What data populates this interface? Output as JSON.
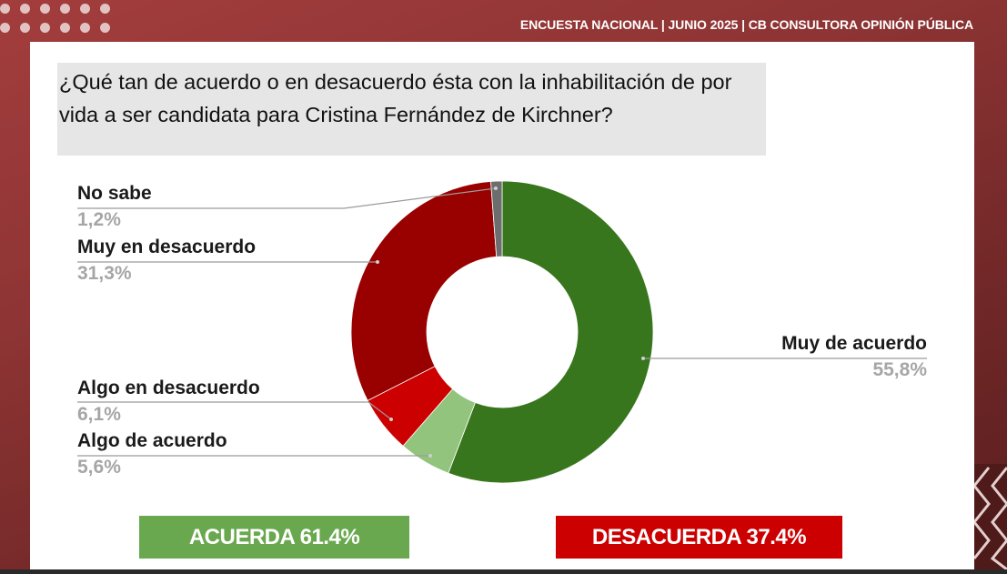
{
  "header": {
    "title": "ENCUESTA NACIONAL | JUNIO 2025 | CB CONSULTORA OPINIÓN PÚBLICA"
  },
  "question": "¿Qué tan de acuerdo o en desacuerdo ésta con la inhabilitación de por vida a ser candidata para Cristina Fernández de Kirchner?",
  "labels": {
    "no_sabe": {
      "name": "No sabe",
      "value": "1,2%"
    },
    "muy_desacuerdo": {
      "name": "Muy en desacuerdo",
      "value": "31,3%"
    },
    "algo_desacuerdo": {
      "name": "Algo en desacuerdo",
      "value": "6,1%"
    },
    "algo_acuerdo": {
      "name": "Algo de acuerdo",
      "value": "5,6%"
    },
    "muy_acuerdo": {
      "name": "Muy de acuerdo",
      "value": "55,8%"
    }
  },
  "summary": {
    "acuerda": "ACUERDA 61.4%",
    "desacuerda": "DESACUERDA 37.4%"
  },
  "colors": {
    "muy_acuerdo": "#38761d",
    "algo_acuerdo": "#93c47d",
    "algo_desacuerdo": "#cc0000",
    "muy_desacuerdo": "#990000",
    "no_sabe": "#6d6d6d",
    "acuerda_box": "#6aa84f",
    "desacuerda_box": "#cc0000"
  },
  "chart_data": {
    "type": "pie",
    "subtype": "donut",
    "title": "¿Qué tan de acuerdo o en desacuerdo ésta con la inhabilitación de por vida a ser candidata para Cristina Fernández de Kirchner?",
    "categories": [
      "Muy de acuerdo",
      "Algo de acuerdo",
      "Algo en desacuerdo",
      "Muy en desacuerdo",
      "No sabe"
    ],
    "values": [
      55.8,
      5.6,
      6.1,
      31.3,
      1.2
    ],
    "colors": [
      "#38761d",
      "#93c47d",
      "#cc0000",
      "#990000",
      "#6d6d6d"
    ],
    "start_angle": "12 o'clock, clockwise",
    "legend": "none (leader-line labels)",
    "totals": {
      "Acuerda": 61.4,
      "Desacuerda": 37.4
    }
  }
}
